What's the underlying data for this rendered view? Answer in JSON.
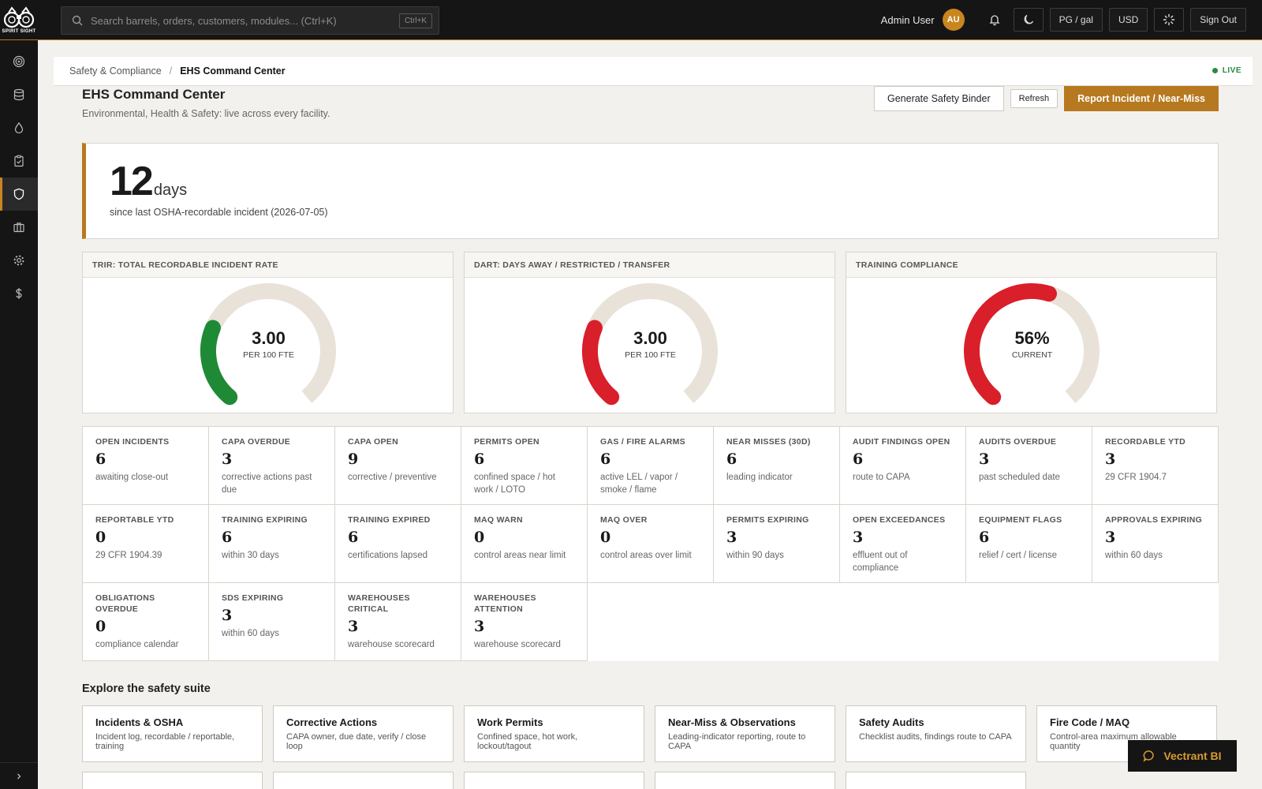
{
  "brand": {
    "logo_text": "SPIRIT SIGHT"
  },
  "search": {
    "placeholder": "Search barrels, orders, customers, modules... (Ctrl+K)",
    "shortcut": "Ctrl+K"
  },
  "header": {
    "user_name": "Admin User",
    "avatar_initials": "AU",
    "units": "PG / gal",
    "currency": "USD",
    "sign_out": "Sign Out"
  },
  "nav": {
    "icons": [
      "target-icon",
      "database-icon",
      "droplet-icon",
      "clipboard-icon",
      "shield-icon",
      "briefcase-icon",
      "gear-icon",
      "dollar-icon"
    ],
    "active": "shield-icon"
  },
  "breadcrumb": {
    "parent": "Safety & Compliance",
    "separator": "/",
    "current": "EHS Command Center",
    "live": "LIVE"
  },
  "page": {
    "title": "EHS Command Center",
    "subtitle": "Environmental, Health & Safety: live across every facility.",
    "actions": {
      "binder": "Generate Safety Binder",
      "refresh": "Refresh",
      "report": "Report Incident / Near-Miss"
    }
  },
  "streak": {
    "value": "12",
    "unit": "days",
    "description": "since last OSHA-recordable incident (2026-07-05)"
  },
  "gauges": [
    {
      "title": "TRIR: TOTAL RECORDABLE INCIDENT RATE",
      "value": "3.00",
      "unit": "PER 100 FTE",
      "fraction": 0.26,
      "color": "#1e8a36"
    },
    {
      "title": "DART: DAYS AWAY / RESTRICTED / TRANSFER",
      "value": "3.00",
      "unit": "PER 100 FTE",
      "fraction": 0.26,
      "color": "#d91f2a"
    },
    {
      "title": "TRAINING COMPLIANCE",
      "value": "56%",
      "unit": "CURRENT",
      "fraction": 0.56,
      "color": "#d91f2a"
    }
  ],
  "gauge_track_color": "#e8e2d8",
  "metrics": [
    {
      "label": "OPEN INCIDENTS",
      "value": "6",
      "sub": "awaiting close-out"
    },
    {
      "label": "CAPA OVERDUE",
      "value": "3",
      "sub": "corrective actions past due"
    },
    {
      "label": "CAPA OPEN",
      "value": "9",
      "sub": "corrective / preventive"
    },
    {
      "label": "PERMITS OPEN",
      "value": "6",
      "sub": "confined space / hot work / LOTO"
    },
    {
      "label": "GAS / FIRE ALARMS",
      "value": "6",
      "sub": "active LEL / vapor / smoke / flame"
    },
    {
      "label": "NEAR MISSES (30D)",
      "value": "6",
      "sub": "leading indicator"
    },
    {
      "label": "AUDIT FINDINGS OPEN",
      "value": "6",
      "sub": "route to CAPA"
    },
    {
      "label": "AUDITS OVERDUE",
      "value": "3",
      "sub": "past scheduled date"
    },
    {
      "label": "RECORDABLE YTD",
      "value": "3",
      "sub": "29 CFR 1904.7"
    },
    {
      "label": "REPORTABLE YTD",
      "value": "0",
      "sub": "29 CFR 1904.39"
    },
    {
      "label": "TRAINING EXPIRING",
      "value": "6",
      "sub": "within 30 days"
    },
    {
      "label": "TRAINING EXPIRED",
      "value": "6",
      "sub": "certifications lapsed"
    },
    {
      "label": "MAQ WARN",
      "value": "0",
      "sub": "control areas near limit"
    },
    {
      "label": "MAQ OVER",
      "value": "0",
      "sub": "control areas over limit"
    },
    {
      "label": "PERMITS EXPIRING",
      "value": "3",
      "sub": "within 90 days"
    },
    {
      "label": "OPEN EXCEEDANCES",
      "value": "3",
      "sub": "effluent out of compliance"
    },
    {
      "label": "EQUIPMENT FLAGS",
      "value": "6",
      "sub": "relief / cert / license"
    },
    {
      "label": "APPROVALS EXPIRING",
      "value": "3",
      "sub": "within 60 days"
    },
    {
      "label": "OBLIGATIONS OVERDUE",
      "value": "0",
      "sub": "compliance calendar"
    },
    {
      "label": "SDS EXPIRING",
      "value": "3",
      "sub": "within 60 days"
    },
    {
      "label": "WAREHOUSES CRITICAL",
      "value": "3",
      "sub": "warehouse scorecard"
    },
    {
      "label": "WAREHOUSES ATTENTION",
      "value": "3",
      "sub": "warehouse scorecard"
    }
  ],
  "explore": {
    "title": "Explore the safety suite",
    "cards": [
      {
        "title": "Incidents & OSHA",
        "desc": "Incident log, recordable / reportable, training"
      },
      {
        "title": "Corrective Actions",
        "desc": "CAPA owner, due date, verify / close loop"
      },
      {
        "title": "Work Permits",
        "desc": "Confined space, hot work, lockout/tagout"
      },
      {
        "title": "Near-Miss & Observations",
        "desc": "Leading-indicator reporting, route to CAPA"
      },
      {
        "title": "Safety Audits",
        "desc": "Checklist audits, findings route to CAPA"
      },
      {
        "title": "Fire Code / MAQ",
        "desc": "Control-area maximum allowable quantity"
      }
    ]
  },
  "assistant": {
    "label": "Vectrant BI"
  }
}
